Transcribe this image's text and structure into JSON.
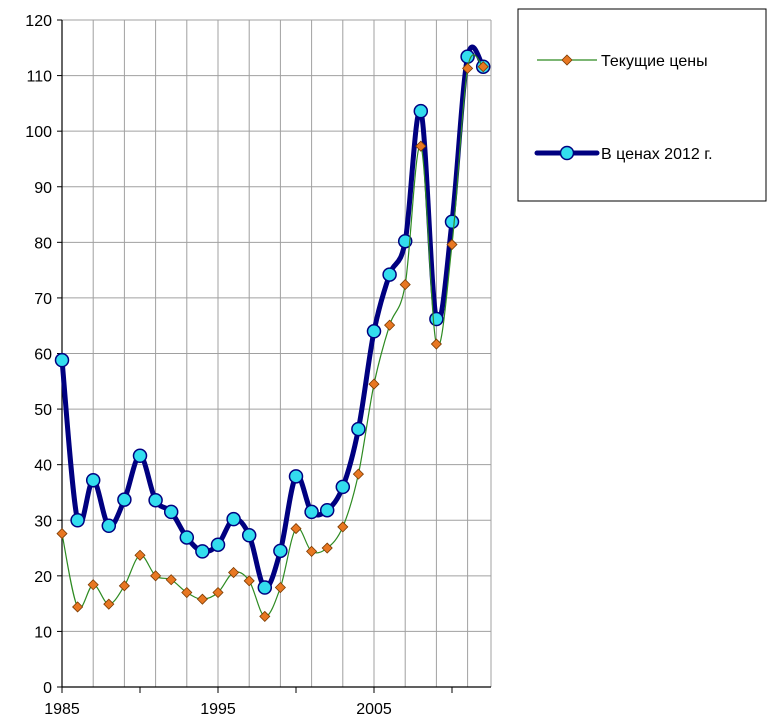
{
  "chart_data": {
    "type": "line",
    "title": "",
    "xlabel": "",
    "ylabel": "",
    "xlim": [
      1985,
      2012.5
    ],
    "ylim": [
      0,
      120
    ],
    "x_ticks": [
      1985,
      1995,
      2005
    ],
    "x_tick_labels": [
      "1985",
      "1995",
      "2005"
    ],
    "y_ticks": [
      0,
      10,
      20,
      30,
      40,
      50,
      60,
      70,
      80,
      90,
      100,
      110,
      120
    ],
    "y_tick_labels": [
      "0",
      "10",
      "20",
      "30",
      "40",
      "50",
      "60",
      "70",
      "80",
      "90",
      "100",
      "110",
      "120"
    ],
    "grid": true,
    "legend_position": "top-right",
    "x": [
      1985,
      1986,
      1987,
      1988,
      1989,
      1990,
      1991,
      1992,
      1993,
      1994,
      1995,
      1996,
      1997,
      1998,
      1999,
      2000,
      2001,
      2002,
      2003,
      2004,
      2005,
      2006,
      2007,
      2008,
      2009,
      2010,
      2011,
      2012
    ],
    "series": [
      {
        "name": "Текущие цены",
        "color": "#2e8b22",
        "marker_color": "#e87722",
        "marker": "diamond",
        "values": [
          27.6,
          14.4,
          18.4,
          14.9,
          18.2,
          23.7,
          20.0,
          19.3,
          17.0,
          15.8,
          17.0,
          20.6,
          19.1,
          12.7,
          17.9,
          28.5,
          24.4,
          25.0,
          28.8,
          38.3,
          54.5,
          65.1,
          72.4,
          97.3,
          61.7,
          79.6,
          111.3,
          111.6
        ]
      },
      {
        "name": "В ценах 2012 г.",
        "color": "#000080",
        "marker_color": "#33ddee",
        "marker": "circle",
        "values": [
          58.8,
          30.0,
          37.2,
          29.0,
          33.7,
          41.6,
          33.6,
          31.5,
          26.9,
          24.4,
          25.6,
          30.2,
          27.3,
          17.9,
          24.5,
          37.9,
          31.5,
          31.8,
          36.0,
          46.4,
          64.0,
          74.2,
          80.2,
          103.6,
          66.2,
          83.7,
          113.4,
          111.6
        ]
      }
    ]
  }
}
